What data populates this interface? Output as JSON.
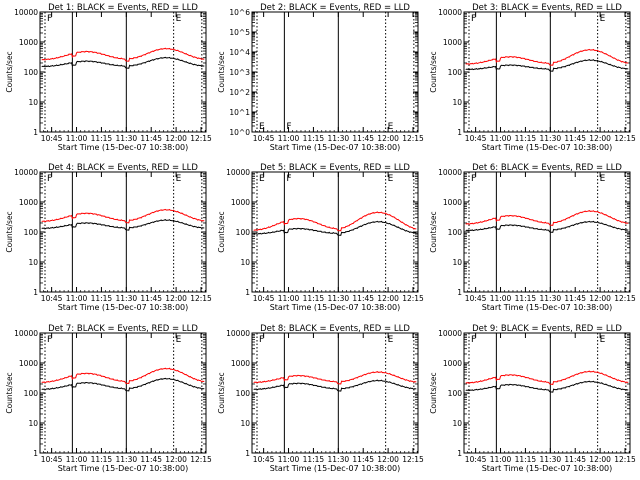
{
  "chart_data": [
    {
      "type": "line",
      "title": "Det 1: BLACK = Events, RED = LLD",
      "xlabel": "Start Time (15-Dec-07 10:38:00)",
      "ylabel": "Counts/sec",
      "ylim": [
        1,
        10000
      ],
      "log": true,
      "yticks": [
        "1",
        "10",
        "100",
        "1000",
        "10000"
      ],
      "xticks": [
        "10:45",
        "11:00",
        "11:15",
        "11:30",
        "11:45",
        "12:00",
        "12:15"
      ],
      "series": [
        {
          "name": "Events",
          "color": "#000000",
          "base": 150,
          "peak1": 230,
          "peak2": 300
        },
        {
          "name": "LLD",
          "color": "#ff0000",
          "base": 250,
          "peak1": 480,
          "peak2": 600
        }
      ],
      "flags": [
        "F",
        "",
        "E"
      ]
    },
    {
      "type": "line",
      "title": "Det 2: BLACK = Events, RED = LLD",
      "xlabel": "Start Time (15-Dec-07 10:38:00)",
      "ylabel": "Counts/sec",
      "ylim": [
        1,
        1000000
      ],
      "log": true,
      "yticks": [
        "10^0",
        "10^1",
        "10^2",
        "10^3",
        "10^4",
        "10^5",
        "10^6"
      ],
      "xticks": [
        "10:45",
        "11:00",
        "11:15",
        "11:30",
        "11:45",
        "12:00",
        "12:15"
      ],
      "series": [],
      "flags": [
        "E",
        "F",
        "E"
      ]
    },
    {
      "type": "line",
      "title": "Det 3: BLACK = Events, RED = LLD",
      "xlabel": "Start Time (15-Dec-07 10:38:00)",
      "ylabel": "Counts/sec",
      "ylim": [
        1,
        10000
      ],
      "log": true,
      "yticks": [
        "1",
        "10",
        "100",
        "1000",
        "10000"
      ],
      "xticks": [
        "10:45",
        "11:00",
        "11:15",
        "11:30",
        "11:45",
        "12:00",
        "12:15"
      ],
      "series": [
        {
          "name": "Events",
          "color": "#000000",
          "base": 120,
          "peak1": 170,
          "peak2": 250
        },
        {
          "name": "LLD",
          "color": "#ff0000",
          "base": 180,
          "peak1": 320,
          "peak2": 550
        }
      ],
      "flags": [
        "F",
        "",
        "E"
      ]
    },
    {
      "type": "line",
      "title": "Det 4: BLACK = Events, RED = LLD",
      "xlabel": "Start Time (15-Dec-07 10:38:00)",
      "ylabel": "Counts/sec",
      "ylim": [
        1,
        10000
      ],
      "log": true,
      "yticks": [
        "1",
        "10",
        "100",
        "1000",
        "10000"
      ],
      "xticks": [
        "10:45",
        "11:00",
        "11:15",
        "11:30",
        "11:45",
        "12:00",
        "12:15"
      ],
      "series": [
        {
          "name": "Events",
          "color": "#000000",
          "base": 130,
          "peak1": 200,
          "peak2": 250
        },
        {
          "name": "LLD",
          "color": "#ff0000",
          "base": 220,
          "peak1": 420,
          "peak2": 550
        }
      ],
      "flags": [
        "F",
        "",
        "E"
      ]
    },
    {
      "type": "line",
      "title": "Det 5: BLACK = Events, RED = LLD",
      "xlabel": "Start Time (15-Dec-07 10:38:00)",
      "ylabel": "Counts/sec",
      "ylim": [
        1,
        10000
      ],
      "log": true,
      "yticks": [
        "1",
        "10",
        "100",
        "1000",
        "10000"
      ],
      "xticks": [
        "10:45",
        "11:00",
        "11:15",
        "11:30",
        "11:45",
        "12:00",
        "12:15"
      ],
      "series": [
        {
          "name": "Events",
          "color": "#000000",
          "base": 85,
          "peak1": 130,
          "peak2": 220
        },
        {
          "name": "LLD",
          "color": "#ff0000",
          "base": 110,
          "peak1": 280,
          "peak2": 450
        }
      ],
      "flags": [
        "E",
        "F",
        "E"
      ]
    },
    {
      "type": "line",
      "title": "Det 6: BLACK = Events, RED = LLD",
      "xlabel": "Start Time (15-Dec-07 10:38:00)",
      "ylabel": "Counts/sec",
      "ylim": [
        1,
        10000
      ],
      "log": true,
      "yticks": [
        "1",
        "10",
        "100",
        "1000",
        "10000"
      ],
      "xticks": [
        "10:45",
        "11:00",
        "11:15",
        "11:30",
        "11:45",
        "12:00",
        "12:15"
      ],
      "series": [
        {
          "name": "Events",
          "color": "#000000",
          "base": 110,
          "peak1": 170,
          "peak2": 220
        },
        {
          "name": "LLD",
          "color": "#ff0000",
          "base": 180,
          "peak1": 350,
          "peak2": 500
        }
      ],
      "flags": [
        "F",
        "",
        "E"
      ]
    },
    {
      "type": "line",
      "title": "Det 7: BLACK = Events, RED = LLD",
      "xlabel": "Start Time (15-Dec-07 10:38:00)",
      "ylabel": "Counts/sec",
      "ylim": [
        1,
        10000
      ],
      "log": true,
      "yticks": [
        "1",
        "10",
        "100",
        "1000",
        "10000"
      ],
      "xticks": [
        "10:45",
        "11:00",
        "11:15",
        "11:30",
        "11:45",
        "12:00",
        "12:15"
      ],
      "series": [
        {
          "name": "Events",
          "color": "#000000",
          "base": 130,
          "peak1": 220,
          "peak2": 300
        },
        {
          "name": "LLD",
          "color": "#ff0000",
          "base": 220,
          "peak1": 450,
          "peak2": 650
        }
      ],
      "flags": [
        "F",
        "",
        "E"
      ]
    },
    {
      "type": "line",
      "title": "Det 8: BLACK = Events, RED = LLD",
      "xlabel": "Start Time (15-Dec-07 10:38:00)",
      "ylabel": "Counts/sec",
      "ylim": [
        1,
        10000
      ],
      "log": true,
      "yticks": [
        "1",
        "10",
        "100",
        "1000",
        "10000"
      ],
      "xticks": [
        "10:45",
        "11:00",
        "11:15",
        "11:30",
        "11:45",
        "12:00",
        "12:15"
      ],
      "series": [
        {
          "name": "Events",
          "color": "#000000",
          "base": 130,
          "peak1": 210,
          "peak2": 260
        },
        {
          "name": "LLD",
          "color": "#ff0000",
          "base": 220,
          "peak1": 380,
          "peak2": 500
        }
      ],
      "flags": [
        "F",
        "",
        "E"
      ]
    },
    {
      "type": "line",
      "title": "Det 9: BLACK = Events, RED = LLD",
      "xlabel": "Start Time (15-Dec-07 10:38:00)",
      "ylabel": "Counts/sec",
      "ylim": [
        1,
        10000
      ],
      "log": true,
      "yticks": [
        "1",
        "10",
        "100",
        "1000",
        "10000"
      ],
      "xticks": [
        "10:45",
        "11:00",
        "11:15",
        "11:30",
        "11:45",
        "12:00",
        "12:15"
      ],
      "series": [
        {
          "name": "Events",
          "color": "#000000",
          "base": 120,
          "peak1": 190,
          "peak2": 240
        },
        {
          "name": "LLD",
          "color": "#ff0000",
          "base": 210,
          "peak1": 400,
          "peak2": 520
        }
      ],
      "flags": [
        "F",
        "",
        "E"
      ]
    }
  ]
}
